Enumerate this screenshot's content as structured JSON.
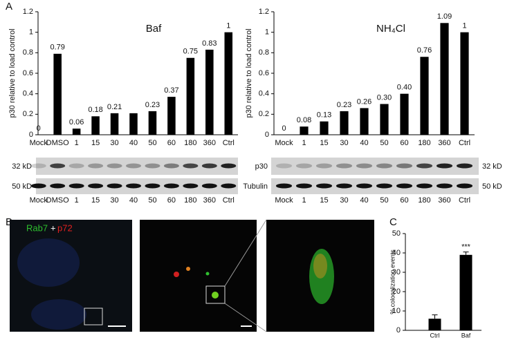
{
  "chart_data": [
    {
      "type": "bar",
      "title": "Baf",
      "y_label": "p30 relative to load control",
      "categories": [
        "Mock",
        "DMSO",
        "1",
        "15",
        "30",
        "40",
        "50",
        "60",
        "180",
        "360",
        "Ctrl"
      ],
      "values": [
        0,
        0.79,
        0.06,
        0.18,
        0.21,
        0.21,
        0.23,
        0.37,
        0.75,
        0.83,
        1
      ],
      "value_labels": [
        "0",
        "0.79",
        "0.06",
        "0.18",
        "0.21",
        null,
        "0.23",
        "0.37",
        "0.75",
        "0.83",
        "1"
      ],
      "color": "#000000",
      "ylim": [
        0,
        1.2
      ],
      "yticks": [
        0,
        0.2,
        0.4,
        0.6,
        0.8,
        1,
        1.2
      ]
    },
    {
      "type": "bar",
      "title": "NH₄Cl",
      "y_label": "p30 relative to load control",
      "categories": [
        "Mock",
        "1",
        "15",
        "30",
        "40",
        "50",
        "60",
        "180",
        "360",
        "Ctrl"
      ],
      "values": [
        0,
        0.08,
        0.13,
        0.23,
        0.26,
        0.3,
        0.4,
        0.76,
        1.09,
        1
      ],
      "value_labels": [
        "0",
        "0.08",
        "0.13",
        "0.23",
        "0.26",
        "0.30",
        "0.40",
        "0.76",
        "1.09",
        "1"
      ],
      "color": "#000000",
      "ylim": [
        0,
        1.2
      ],
      "yticks": [
        0,
        0.2,
        0.4,
        0.6,
        0.8,
        1,
        1.2
      ]
    },
    {
      "type": "bar",
      "y_label": "% colocalization events",
      "categories": [
        "Ctrl",
        "Baf"
      ],
      "values": [
        6,
        39
      ],
      "errors": [
        2,
        1.5
      ],
      "annotation": "***",
      "color": "#000000",
      "ylim": [
        0,
        50
      ],
      "yticks": [
        0,
        10,
        20,
        30,
        40,
        50
      ]
    }
  ],
  "panels": [
    "A",
    "B",
    "C"
  ],
  "blots": {
    "left_top": "32 kD",
    "left_bottom": "50 kD",
    "right_top_name": "p30",
    "right_bottom_name": "Tubulin",
    "right_top": "32 kD",
    "right_bottom": "50 kD"
  },
  "microscopy": {
    "green": "Rab7",
    "plus": "+",
    "red": "p72"
  }
}
